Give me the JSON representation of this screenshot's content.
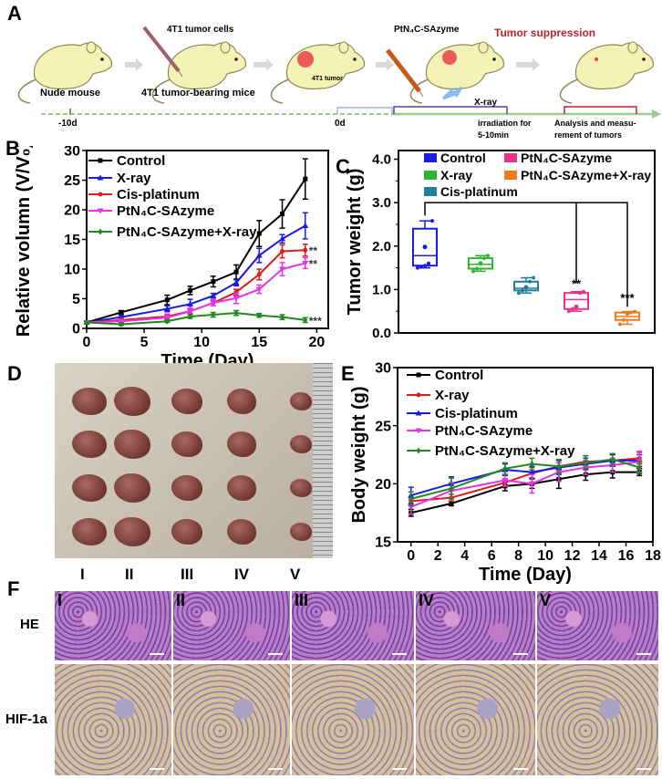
{
  "panels": {
    "A": "A",
    "B": "B",
    "C": "C",
    "D": "D",
    "E": "E",
    "F": "F"
  },
  "schematic": {
    "tumor_cells": "4T1 tumor cells",
    "tumor_label": "4T1 tumor",
    "agent": "PtN₄C-SAzyme",
    "suppression": "Tumor suppression",
    "nude_mouse": "Nude mouse",
    "bearing_mice": "4T1 tumor-bearing mice",
    "xray": "X-ray",
    "day_minus10": "-10d",
    "day0": "0d",
    "irradiation_1": "irradiation for",
    "irradiation_2": "5-10min",
    "analysis_1": "Analysis and measu-",
    "analysis_2": "rement of tumors",
    "suppression_color": "#c0232b"
  },
  "chart_data": [
    {
      "id": "B",
      "type": "line",
      "xlabel": "Time (Day)",
      "ylabel": "Relative volumn (V/V₀)",
      "xlim": [
        0,
        21
      ],
      "ylim": [
        0,
        30
      ],
      "xticks": [
        0,
        5,
        10,
        15,
        20
      ],
      "yticks": [
        0,
        5,
        10,
        15,
        20,
        25,
        30
      ],
      "legend": "top-left",
      "x": [
        0,
        3,
        7,
        9,
        11,
        13,
        15,
        17,
        19
      ],
      "series": [
        {
          "name": "Control",
          "color": "#000000",
          "marker": "square",
          "values": [
            1,
            2.7,
            4.8,
            6.4,
            7.9,
            9.5,
            16,
            19.3,
            25.2
          ],
          "errors": [
            0.2,
            0.3,
            0.8,
            0.7,
            0.9,
            1.2,
            2.2,
            2.4,
            3.4
          ]
        },
        {
          "name": "X-ray",
          "color": "#1a1ae6",
          "marker": "triangle",
          "values": [
            1,
            1.9,
            3.3,
            4.1,
            5.5,
            7.7,
            12.3,
            15.1,
            17.3
          ],
          "errors": [
            0.2,
            0.3,
            0.5,
            0.8,
            0.4,
            0.5,
            1.2,
            0.7,
            2.2
          ]
        },
        {
          "name": "Cis-platinum",
          "color": "#e01b1b",
          "marker": "circle",
          "values": [
            1,
            1.4,
            2.0,
            2.9,
            4.3,
            6.1,
            9.1,
            13.0,
            13.2
          ],
          "errors": [
            0.2,
            0.3,
            0.4,
            0.4,
            0.5,
            0.5,
            0.9,
            1.1,
            1.0
          ],
          "annotation": "**"
        },
        {
          "name": "PtN₄C-SAzyme",
          "color": "#e633e6",
          "marker": "triangle-down",
          "values": [
            1,
            1.2,
            1.8,
            2.9,
            4.3,
            5.1,
            6.6,
            10.0,
            11.0
          ],
          "errors": [
            0.2,
            0.3,
            0.5,
            0.5,
            0.5,
            0.9,
            0.7,
            1.1,
            0.9
          ],
          "annotation": "**"
        },
        {
          "name": "PtN₄C-SAzyme+X-ray",
          "color": "#1f8a1f",
          "marker": "diamond",
          "values": [
            1,
            0.7,
            1.2,
            2.0,
            2.3,
            2.6,
            2.2,
            1.9,
            1.4
          ],
          "errors": [
            0.2,
            0.2,
            0.2,
            0.3,
            0.4,
            0.4,
            0.3,
            0.4,
            0.4
          ],
          "annotation": "***"
        }
      ]
    },
    {
      "id": "C",
      "type": "box",
      "ylabel": "Tumor weight (g)",
      "ylim": [
        0,
        4.2
      ],
      "yticks": [
        "0.0",
        "1.0",
        "2.0",
        "3.0",
        "4.0"
      ],
      "legend": "top",
      "groups": [
        {
          "name": "Control",
          "color": "#1a1ae6",
          "min": 1.5,
          "q1": 1.55,
          "median": 1.78,
          "q3": 2.4,
          "max": 2.58,
          "mean": 1.98,
          "points": [
            1.5,
            1.52,
            1.55,
            1.6,
            2.58
          ]
        },
        {
          "name": "X-ray",
          "color": "#2db52d",
          "min": 1.42,
          "q1": 1.48,
          "median": 1.58,
          "q3": 1.72,
          "max": 1.78,
          "mean": 1.6,
          "points": [
            1.42,
            1.48,
            1.6,
            1.72,
            1.78
          ]
        },
        {
          "name": "Cis-platinum",
          "color": "#1f7f9a",
          "min": 0.92,
          "q1": 0.98,
          "median": 1.03,
          "q3": 1.18,
          "max": 1.27,
          "mean": 1.05,
          "points": [
            0.92,
            0.98,
            1.05,
            1.18,
            1.27
          ]
        },
        {
          "name": "PtN₄C-SAzyme",
          "color": "#e8338a",
          "min": 0.5,
          "q1": 0.55,
          "median": 0.77,
          "q3": 0.92,
          "max": 0.95,
          "mean": 0.6,
          "points": [
            0.5,
            0.55,
            0.6,
            0.92,
            0.95
          ],
          "annotation": "**"
        },
        {
          "name": "PtN₄C-SAzyme+X-ray",
          "color": "#f07a1a",
          "min": 0.2,
          "q1": 0.3,
          "median": 0.38,
          "q3": 0.47,
          "max": 0.49,
          "mean": 0.45,
          "points": [
            0.2,
            0.3,
            0.45,
            0.47,
            0.49
          ],
          "annotation": "***"
        }
      ]
    },
    {
      "id": "E",
      "type": "line",
      "xlabel": "Time (Day)",
      "ylabel": "Body weight (g)",
      "xlim": [
        -1,
        18
      ],
      "ylim": [
        15,
        30
      ],
      "xticks": [
        0,
        2,
        4,
        6,
        8,
        10,
        12,
        14,
        16,
        18
      ],
      "yticks": [
        15,
        20,
        25,
        30
      ],
      "legend": "top-left",
      "x": [
        0,
        3,
        7,
        9,
        11,
        13,
        15,
        17
      ],
      "series": [
        {
          "name": "Control",
          "color": "#000000",
          "marker": "square",
          "values": [
            17.5,
            18.3,
            19.8,
            20.0,
            20.4,
            20.8,
            21.0,
            21.0
          ],
          "errors": [
            0.3,
            0.2,
            0.4,
            0.4,
            0.8,
            0.5,
            0.5,
            0.3
          ]
        },
        {
          "name": "X-ray",
          "color": "#e01b1b",
          "marker": "circle",
          "values": [
            18.5,
            18.8,
            20.1,
            20.9,
            21.5,
            21.9,
            22.0,
            22.2
          ],
          "errors": [
            0.3,
            0.3,
            0.3,
            0.5,
            0.5,
            0.5,
            0.5,
            0.5
          ]
        },
        {
          "name": "Cis-platinum",
          "color": "#1a1ae6",
          "marker": "triangle",
          "values": [
            19.0,
            20.0,
            21.2,
            21.0,
            21.4,
            21.7,
            22.0,
            22.0
          ],
          "errors": [
            0.7,
            0.6,
            0.5,
            0.5,
            0.6,
            0.5,
            0.5,
            0.5
          ]
        },
        {
          "name": "PtN₄C-SAzyme",
          "color": "#e633e6",
          "marker": "triangle-down",
          "values": [
            18.0,
            19.4,
            20.3,
            20.0,
            21.0,
            21.4,
            21.6,
            21.9
          ],
          "errors": [
            0.6,
            0.7,
            0.5,
            0.8,
            0.8,
            0.6,
            0.6,
            0.9
          ]
        },
        {
          "name": "PtN₄C-SAzyme+X-ray",
          "color": "#1f8a1f",
          "marker": "diamond",
          "values": [
            18.7,
            19.6,
            21.3,
            21.7,
            21.5,
            21.8,
            22.1,
            21.4
          ],
          "errors": [
            0.6,
            0.9,
            0.5,
            0.5,
            0.6,
            0.6,
            0.5,
            0.5
          ]
        }
      ]
    }
  ],
  "photo": {
    "groups": [
      "I",
      "II",
      "III",
      "IV",
      "V"
    ]
  },
  "histology": {
    "rows": [
      "HE",
      "HIF-1a"
    ],
    "columns": [
      "I",
      "II",
      "III",
      "IV",
      "V"
    ]
  }
}
